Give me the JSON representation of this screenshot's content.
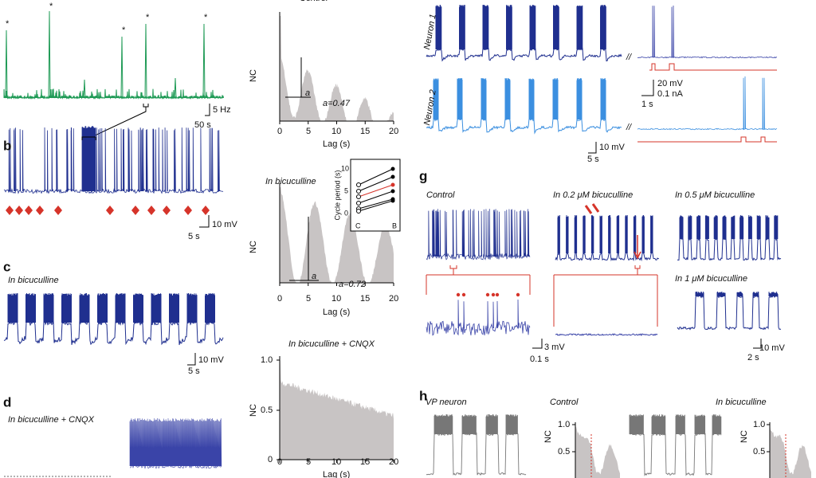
{
  "panel_a": {
    "peak_markers": [
      "*",
      "*",
      "*",
      "*",
      "*"
    ],
    "scale_y": "5 Hz",
    "scale_x": "50 s"
  },
  "panel_b": {
    "label": "b",
    "scale_y": "10 mV",
    "scale_x": "5 s"
  },
  "panel_c": {
    "label": "c",
    "condition": "In bicuculline",
    "scale_y": "10 mV",
    "scale_x": "5 s"
  },
  "panel_d": {
    "label": "d",
    "condition": "In bicuculline + CNQX"
  },
  "autocorr_control": {
    "title": "Control",
    "y_label": "NC",
    "x_label": "Lag (s)",
    "x_ticks": [
      "0",
      "5",
      "10",
      "15",
      "20"
    ],
    "marker": "a",
    "annotation": "a=0.47"
  },
  "autocorr_bicuculline": {
    "title": "In bicuculline",
    "y_label": "NC",
    "x_label": "Lag (s)",
    "x_ticks": [
      "0",
      "5",
      "10",
      "15",
      "20"
    ],
    "marker": "a",
    "annotation": "a=0.72",
    "inset": {
      "y_label": "Cycle period (s)",
      "y_ticks": [
        "10",
        "5",
        "0"
      ],
      "x_ticks": [
        "C",
        "B"
      ]
    }
  },
  "autocorr_cnqx": {
    "title": "In bicuculline + CNQX",
    "y_label": "NC",
    "x_label": "Lag (s)",
    "y_ticks": [
      "1.0",
      "0.5",
      "0"
    ],
    "x_ticks": [
      "0",
      "5",
      "10",
      "15",
      "20"
    ]
  },
  "panel_f": {
    "neuron_1": "Neuron 1",
    "neuron_2": "Neuron 2",
    "break_1": "//",
    "break_2": "//",
    "scale_voltage": "20 mV",
    "scale_current": "0.1 nA",
    "scale_time": "1 s",
    "scale_voltage_2": "10 mV",
    "scale_time_2": "5 s"
  },
  "panel_g": {
    "label": "g",
    "control": "Control",
    "bic_02": "In 0.2 μM bicuculline",
    "bic_05": "In 0.5 μM bicuculline",
    "bic_1": "In 1 μM bicuculline",
    "zoom_scale_y": "3 mV",
    "zoom_scale_x": "0.1 s",
    "scale_y": "10 mV",
    "scale_x": "2 s"
  },
  "panel_h": {
    "label": "h",
    "vp_neuron": "VP neuron",
    "control": "Control",
    "bicuculline": "In bicuculline",
    "y_label_1": "NC",
    "y_ticks_1": [
      "1.0",
      "0.5"
    ],
    "y_label_2": "NC",
    "y_ticks_2": [
      "1.0",
      "0.5"
    ]
  }
}
